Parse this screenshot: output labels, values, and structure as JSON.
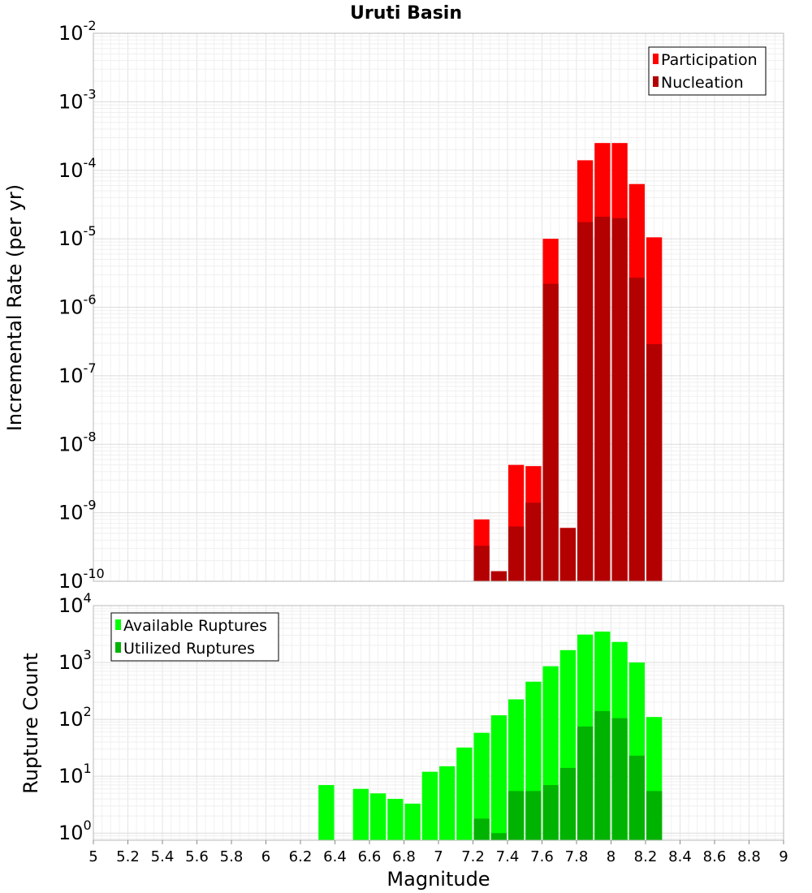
{
  "chart_data": [
    {
      "type": "bar",
      "title": "Uruti Basin",
      "ylabel": "Incremental Rate (per yr)",
      "xlabel": "",
      "yscale": "log",
      "ylim": [
        1e-10,
        0.01
      ],
      "xlim": [
        5,
        9
      ],
      "bar_width": 0.1,
      "grid": true,
      "legend_position": "top-right",
      "y_ticks": [
        {
          "base": "10",
          "exp": "-10",
          "value": 1e-10
        },
        {
          "base": "10",
          "exp": "-9",
          "value": 1e-09
        },
        {
          "base": "10",
          "exp": "-8",
          "value": 1e-08
        },
        {
          "base": "10",
          "exp": "-7",
          "value": 1e-07
        },
        {
          "base": "10",
          "exp": "-6",
          "value": 1e-06
        },
        {
          "base": "10",
          "exp": "-5",
          "value": 1e-05
        },
        {
          "base": "10",
          "exp": "-4",
          "value": 0.0001
        },
        {
          "base": "10",
          "exp": "-3",
          "value": 0.001
        },
        {
          "base": "10",
          "exp": "-2",
          "value": 0.01
        }
      ],
      "series": [
        {
          "name": "Participation",
          "color": "#ff0000",
          "x": [
            7.25,
            7.35,
            7.45,
            7.55,
            7.65,
            7.75,
            7.85,
            7.95,
            8.05,
            8.15,
            8.25
          ],
          "values": [
            8e-10,
            1.4e-10,
            5e-09,
            4.8e-09,
            1e-05,
            6e-10,
            0.00014,
            0.00025,
            0.00025,
            6.3e-05,
            1.05e-05
          ]
        },
        {
          "name": "Nucleation",
          "color": "#b30000",
          "x": [
            7.25,
            7.35,
            7.45,
            7.55,
            7.65,
            7.75,
            7.85,
            7.95,
            8.05,
            8.15,
            8.25
          ],
          "values": [
            3.3e-10,
            1.4e-10,
            6.3e-10,
            1.4e-09,
            2.2e-06,
            6e-10,
            1.75e-05,
            2.1e-05,
            2e-05,
            2.7e-06,
            2.9e-07
          ]
        }
      ]
    },
    {
      "type": "bar",
      "title": "",
      "ylabel": "Rupture Count",
      "xlabel": "Magnitude",
      "yscale": "log",
      "ylim": [
        0.75,
        10000
      ],
      "xlim": [
        5,
        9
      ],
      "bar_width": 0.1,
      "grid": true,
      "legend_position": "top-left",
      "x_ticks": [
        "5",
        "5.2",
        "5.4",
        "5.6",
        "5.8",
        "6",
        "6.2",
        "6.4",
        "6.6",
        "6.8",
        "7",
        "7.2",
        "7.4",
        "7.6",
        "7.8",
        "8",
        "8.2",
        "8.4",
        "8.6",
        "8.8",
        "9"
      ],
      "y_ticks": [
        {
          "base": "10",
          "exp": "0",
          "value": 1
        },
        {
          "base": "10",
          "exp": "1",
          "value": 10
        },
        {
          "base": "10",
          "exp": "2",
          "value": 100
        },
        {
          "base": "10",
          "exp": "3",
          "value": 1000
        },
        {
          "base": "10",
          "exp": "4",
          "value": 10000
        }
      ],
      "series": [
        {
          "name": "Available Ruptures",
          "color": "#00ff00",
          "x": [
            6.35,
            6.55,
            6.65,
            6.75,
            6.85,
            6.95,
            7.05,
            7.15,
            7.25,
            7.35,
            7.45,
            7.55,
            7.65,
            7.75,
            7.85,
            7.95,
            8.05,
            8.15,
            8.25
          ],
          "values": [
            7,
            6,
            5,
            4,
            3.3,
            12,
            15,
            32,
            58,
            118,
            225,
            460,
            860,
            1650,
            3100,
            3500,
            2300,
            1000,
            110
          ]
        },
        {
          "name": "Utilized Ruptures",
          "color": "#00b300",
          "x": [
            7.25,
            7.35,
            7.45,
            7.55,
            7.65,
            7.75,
            7.85,
            7.95,
            8.05,
            8.15,
            8.25
          ],
          "values": [
            1.8,
            1,
            5.5,
            5.5,
            7,
            14,
            75,
            140,
            105,
            23,
            5.5
          ]
        }
      ]
    }
  ]
}
